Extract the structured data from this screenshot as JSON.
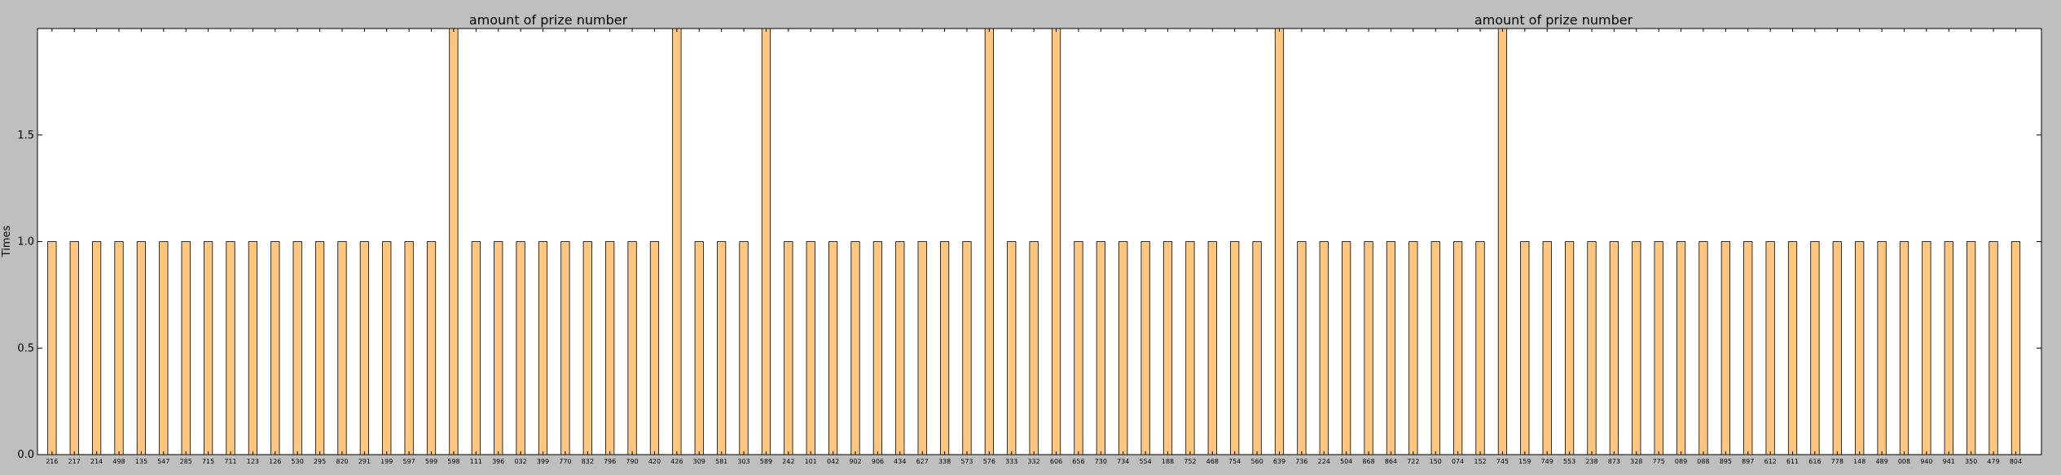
{
  "chart_data": [
    {
      "type": "bar",
      "title": "amount of prize number",
      "xlabel": "",
      "ylabel": "Times",
      "ylim": [
        0,
        2
      ],
      "yticks": [
        "0.0",
        "0.5",
        "1.0",
        "1.5"
      ],
      "categories": [
        "216",
        "217",
        "214",
        "498",
        "135",
        "547",
        "285",
        "715",
        "711",
        "123",
        "126",
        "530",
        "295",
        "820",
        "291",
        "199",
        "597",
        "599",
        "598",
        "111",
        "396",
        "032",
        "399",
        "770",
        "832",
        "796",
        "790",
        "420",
        "426",
        "309",
        "581",
        "303",
        "589",
        "242",
        "101",
        "042",
        "902",
        "906",
        "434",
        "627",
        "338",
        "573",
        "576",
        "333",
        "332",
        "606"
      ],
      "values": [
        1,
        1,
        1,
        1,
        1,
        1,
        1,
        1,
        1,
        1,
        1,
        1,
        1,
        1,
        1,
        1,
        1,
        1,
        2,
        1,
        1,
        1,
        1,
        1,
        1,
        1,
        1,
        1,
        2,
        1,
        1,
        1,
        2,
        1,
        1,
        1,
        1,
        1,
        1,
        1,
        1,
        1,
        2,
        1,
        1,
        2
      ],
      "bar_color": "#ffc680"
    },
    {
      "type": "bar",
      "title": "amount of prize number",
      "xlabel": "",
      "ylabel": "",
      "ylim": [
        0,
        2
      ],
      "categories": [
        "656",
        "730",
        "734",
        "554",
        "188",
        "752",
        "468",
        "754",
        "560",
        "639",
        "736",
        "224",
        "504",
        "868",
        "864",
        "722",
        "150",
        "074",
        "152",
        "745",
        "159",
        "749",
        "553",
        "238",
        "873",
        "328",
        "775",
        "089",
        "088",
        "895",
        "897",
        "612",
        "611",
        "616",
        "778",
        "148",
        "489",
        "008",
        "940",
        "941",
        "350",
        "479",
        "804"
      ],
      "values": [
        1,
        1,
        1,
        1,
        1,
        1,
        1,
        1,
        1,
        2,
        1,
        1,
        1,
        1,
        1,
        1,
        1,
        1,
        1,
        2,
        1,
        1,
        1,
        1,
        1,
        1,
        1,
        1,
        1,
        1,
        1,
        1,
        1,
        1,
        1,
        1,
        1,
        1,
        1,
        1,
        1,
        1,
        1
      ],
      "bar_color": "#ffc680"
    }
  ]
}
